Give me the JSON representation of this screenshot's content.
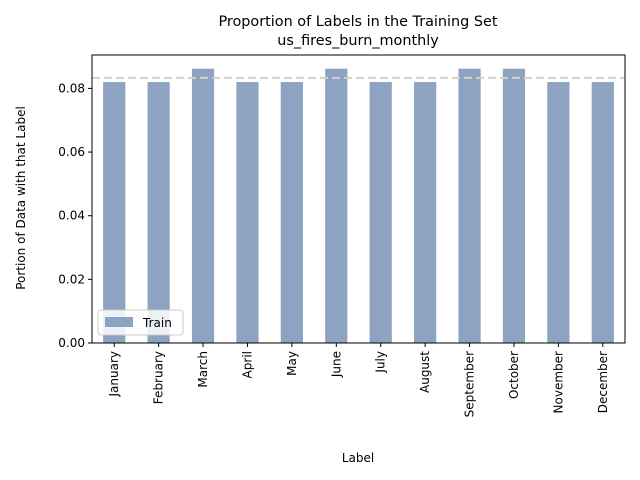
{
  "chart_data": {
    "type": "bar",
    "title": "Proportion of Labels in the Training Set",
    "subtitle": "us_fires_burn_monthly",
    "xlabel": "Label",
    "ylabel": "Portion of Data with that Label",
    "categories": [
      "January",
      "February",
      "March",
      "April",
      "May",
      "June",
      "July",
      "August",
      "September",
      "October",
      "November",
      "December"
    ],
    "series": [
      {
        "name": "Train",
        "color": "#8da3c1",
        "values": [
          0.082,
          0.082,
          0.0862,
          0.082,
          0.082,
          0.0862,
          0.082,
          0.082,
          0.0862,
          0.0862,
          0.082,
          0.082
        ]
      }
    ],
    "reference_line": {
      "value": 0.0833,
      "style": "dashed",
      "color": "#d9d0c3"
    },
    "ylim": [
      0,
      0.0905
    ],
    "yticks": [
      0.0,
      0.02,
      0.04,
      0.06,
      0.08
    ],
    "ytick_labels": [
      "0.00",
      "0.02",
      "0.04",
      "0.06",
      "0.08"
    ],
    "grid": false,
    "legend_position": "lower-left"
  }
}
